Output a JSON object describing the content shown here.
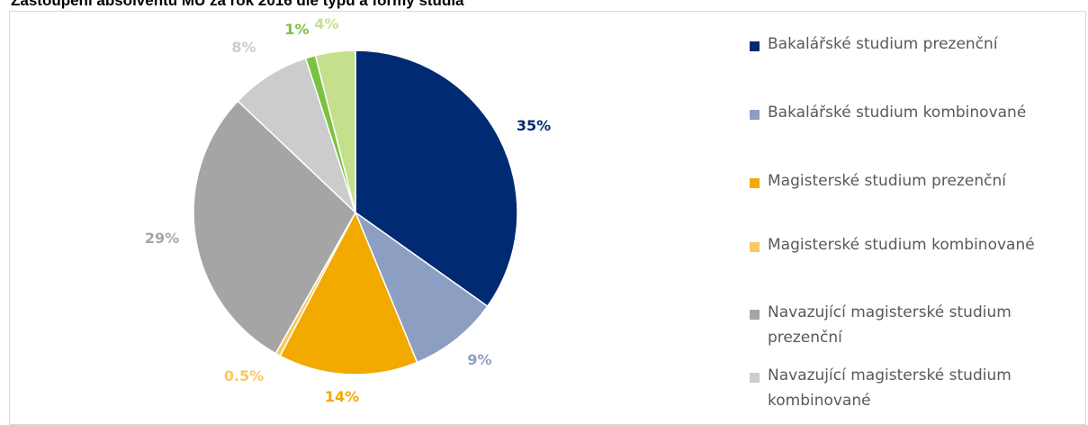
{
  "chart_data": {
    "type": "pie",
    "title": "Zastoupení absolventů MU za rok 2016 dle typu a formy studia",
    "slices": [
      {
        "label": "Bakalářské studium prezenční",
        "value": 35,
        "display": "35%",
        "color": "#002b72"
      },
      {
        "label": "Bakalářské studium kombinované",
        "value": 9,
        "display": "9%",
        "color": "#8c9fc3"
      },
      {
        "label": "Magisterské studium prezenční",
        "value": 14,
        "display": "14%",
        "color": "#f2a900"
      },
      {
        "label": "Magisterské studium kombinované",
        "value": 0.5,
        "display": "0.5%",
        "color": "#f8c95e"
      },
      {
        "label": "Navazující magisterské studium prezenční",
        "value": 29,
        "display": "29%",
        "color": "#a5a5a5"
      },
      {
        "label": "Navazující magisterské studium kombinované",
        "value": 8,
        "display": "8%",
        "color": "#cccccc"
      },
      {
        "label": "",
        "value": 1,
        "display": "1%",
        "color": "#7cc242"
      },
      {
        "label": "",
        "value": 4,
        "display": "4%",
        "color": "#c5e08c"
      }
    ],
    "legend_position": "right"
  }
}
